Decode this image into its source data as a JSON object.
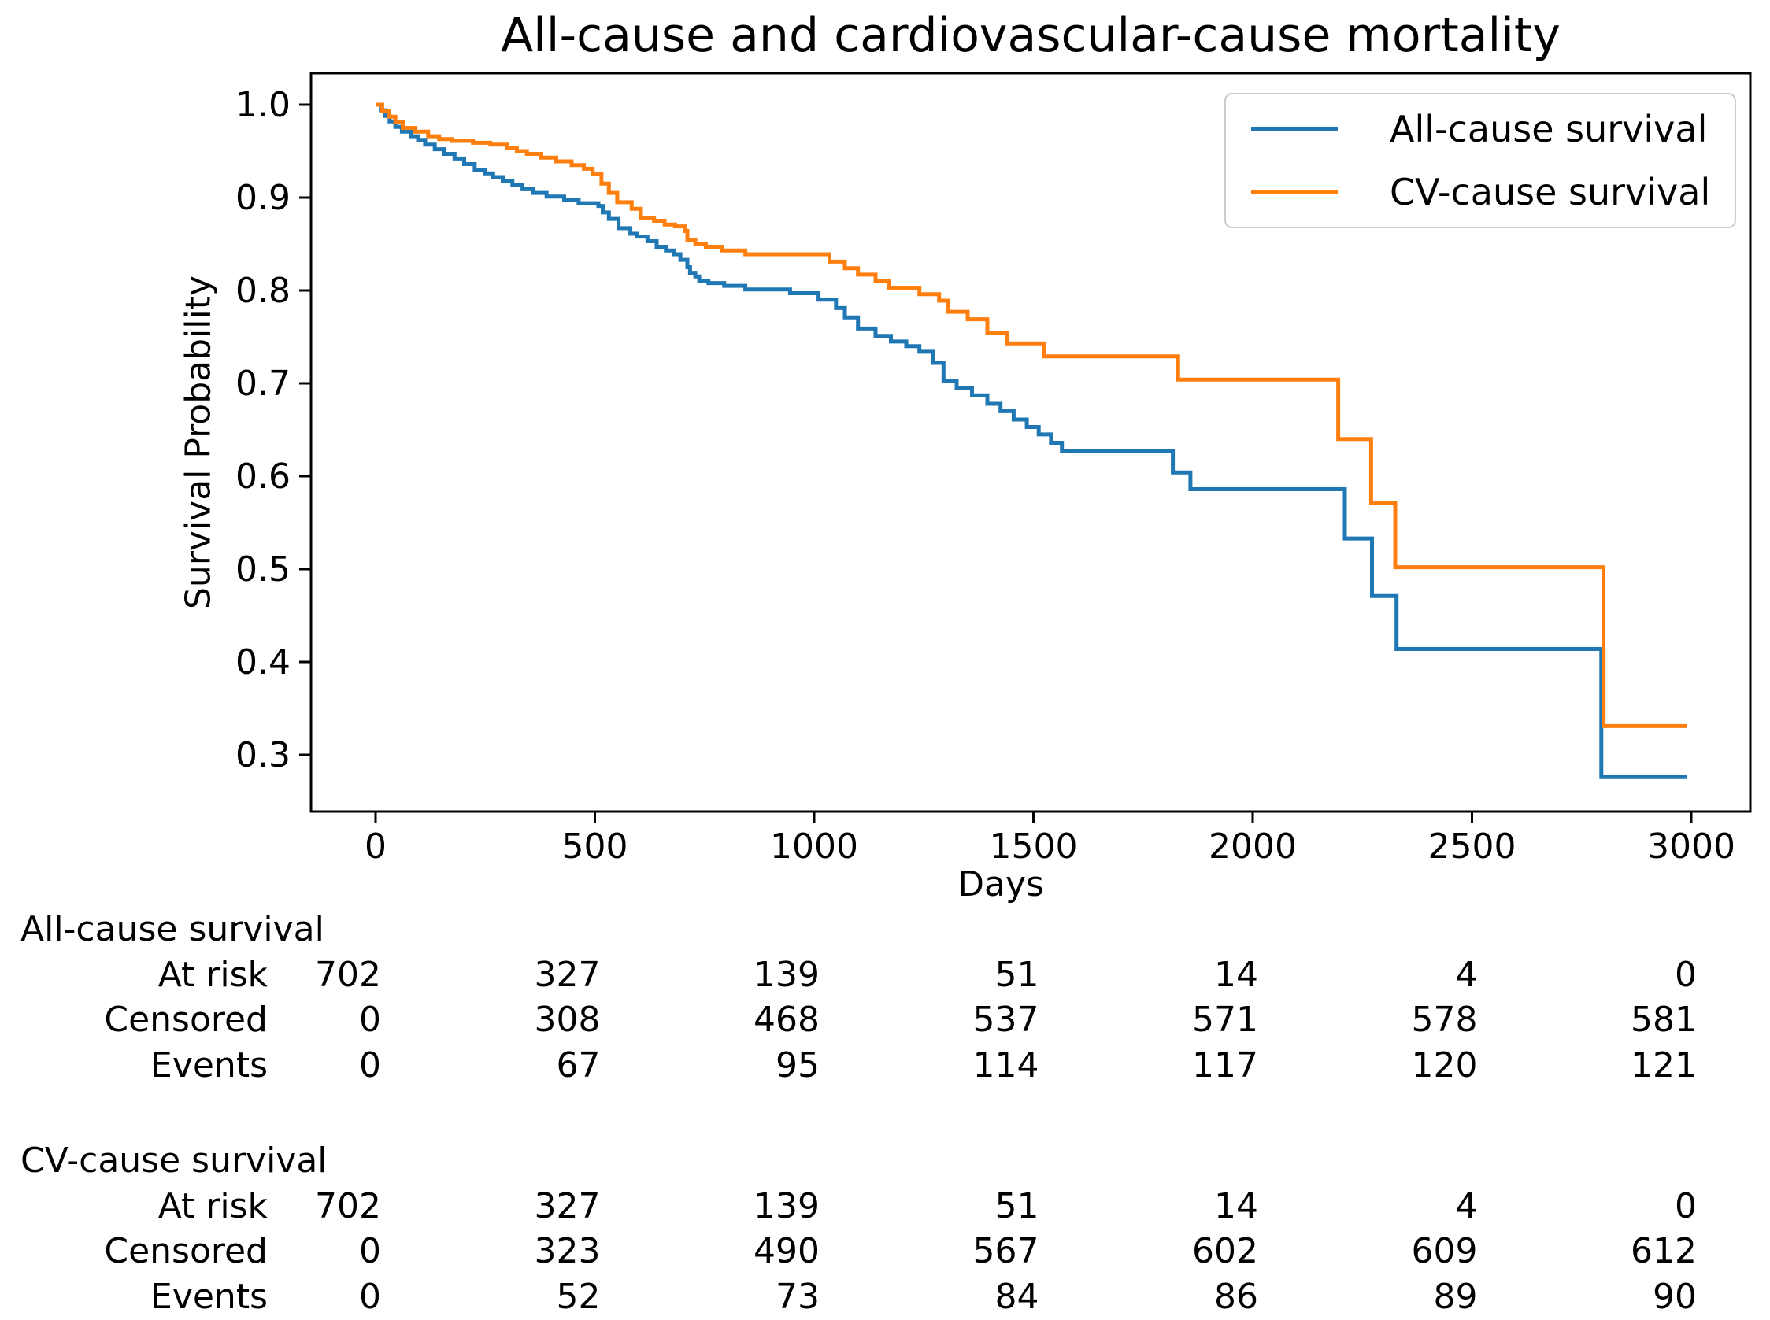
{
  "title": "All-cause and cardiovascular-cause mortality",
  "axes": {
    "xlabel": "Days",
    "ylabel": "Survival Probability",
    "x_ticks": [
      0,
      500,
      1000,
      1500,
      2000,
      2500,
      3000
    ],
    "y_ticks": [
      "1.0",
      "0.9",
      "0.8",
      "0.7",
      "0.6",
      "0.5",
      "0.4",
      "0.3"
    ],
    "xlim": [
      -150,
      3140
    ],
    "ylim": [
      0.239,
      1.034
    ],
    "grid": false
  },
  "legend": {
    "position": "upper right",
    "items": [
      {
        "label": "All-cause survival",
        "color": "#1f77b4"
      },
      {
        "label": "CV-cause survival",
        "color": "#ff7f0e"
      }
    ]
  },
  "chart_data": {
    "type": "line",
    "subtype": "kaplan-meier-step",
    "title": "All-cause and cardiovascular-cause mortality",
    "xlabel": "Days",
    "ylabel": "Survival Probability",
    "xlim": [
      -150,
      3140
    ],
    "ylim": [
      0.239,
      1.034
    ],
    "legend_position": "upper right",
    "series": [
      {
        "name": "All-cause survival",
        "color": "#1f77b4",
        "x": [
          0,
          12,
          22,
          32,
          45,
          60,
          80,
          97,
          113,
          135,
          157,
          180,
          202,
          226,
          250,
          268,
          290,
          312,
          335,
          360,
          390,
          430,
          463,
          508,
          518,
          532,
          554,
          581,
          596,
          620,
          641,
          662,
          680,
          695,
          711,
          717,
          729,
          738,
          759,
          795,
          843,
          945,
          1010,
          1050,
          1070,
          1100,
          1140,
          1175,
          1210,
          1240,
          1272,
          1295,
          1325,
          1360,
          1395,
          1425,
          1455,
          1485,
          1512,
          1540,
          1565,
          1818,
          1858,
          2210,
          2272,
          2328,
          2795,
          2990
        ],
        "y": [
          1.0,
          0.994,
          0.988,
          0.982,
          0.976,
          0.971,
          0.966,
          0.962,
          0.957,
          0.952,
          0.947,
          0.942,
          0.936,
          0.93,
          0.926,
          0.922,
          0.918,
          0.914,
          0.909,
          0.905,
          0.901,
          0.897,
          0.894,
          0.891,
          0.884,
          0.877,
          0.867,
          0.861,
          0.858,
          0.853,
          0.847,
          0.843,
          0.839,
          0.833,
          0.825,
          0.819,
          0.815,
          0.81,
          0.808,
          0.805,
          0.801,
          0.797,
          0.79,
          0.781,
          0.771,
          0.759,
          0.751,
          0.745,
          0.74,
          0.734,
          0.722,
          0.703,
          0.695,
          0.687,
          0.678,
          0.67,
          0.661,
          0.653,
          0.645,
          0.636,
          0.627,
          0.604,
          0.586,
          0.533,
          0.471,
          0.414,
          0.276,
          0.276
        ]
      },
      {
        "name": "CV-cause survival",
        "color": "#ff7f0e",
        "x": [
          0,
          15,
          30,
          45,
          62,
          90,
          120,
          145,
          175,
          222,
          262,
          300,
          322,
          345,
          378,
          412,
          447,
          475,
          495,
          515,
          532,
          551,
          584,
          605,
          635,
          659,
          683,
          705,
          711,
          729,
          753,
          789,
          843,
          1035,
          1070,
          1100,
          1140,
          1170,
          1240,
          1285,
          1305,
          1350,
          1395,
          1440,
          1525,
          1830,
          2195,
          2270,
          2325,
          2800,
          2990
        ],
        "y": [
          1.0,
          0.993,
          0.987,
          0.981,
          0.975,
          0.971,
          0.966,
          0.963,
          0.961,
          0.959,
          0.957,
          0.953,
          0.95,
          0.947,
          0.943,
          0.939,
          0.935,
          0.931,
          0.925,
          0.915,
          0.905,
          0.895,
          0.888,
          0.878,
          0.875,
          0.871,
          0.869,
          0.864,
          0.854,
          0.85,
          0.847,
          0.843,
          0.839,
          0.831,
          0.824,
          0.817,
          0.81,
          0.803,
          0.796,
          0.789,
          0.777,
          0.769,
          0.754,
          0.743,
          0.729,
          0.704,
          0.64,
          0.571,
          0.502,
          0.331,
          0.331
        ]
      }
    ]
  },
  "risk_tables": {
    "time_points": [
      0,
      500,
      1000,
      1500,
      2000,
      2500,
      3000
    ],
    "groups": [
      {
        "group": "All-cause survival",
        "rows": [
          {
            "label": "At risk",
            "values": [
              702,
              327,
              139,
              51,
              14,
              4,
              0
            ]
          },
          {
            "label": "Censored",
            "values": [
              0,
              308,
              468,
              537,
              571,
              578,
              581
            ]
          },
          {
            "label": "Events",
            "values": [
              0,
              67,
              95,
              114,
              117,
              120,
              121
            ]
          }
        ]
      },
      {
        "group": "CV-cause survival",
        "rows": [
          {
            "label": "At risk",
            "values": [
              702,
              327,
              139,
              51,
              14,
              4,
              0
            ]
          },
          {
            "label": "Censored",
            "values": [
              0,
              323,
              490,
              567,
              602,
              609,
              612
            ]
          },
          {
            "label": "Events",
            "values": [
              0,
              52,
              73,
              84,
              86,
              89,
              90
            ]
          }
        ]
      }
    ]
  }
}
